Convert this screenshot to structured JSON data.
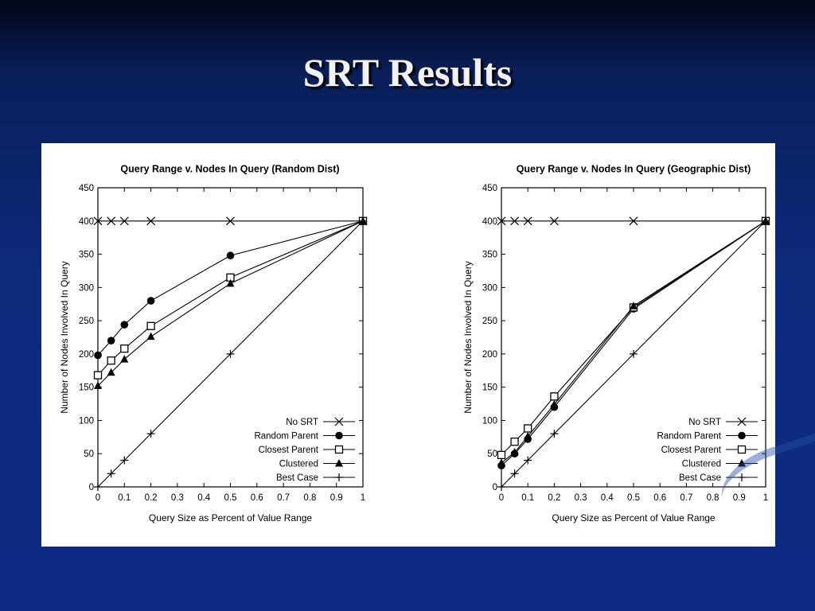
{
  "slide": {
    "title": "SRT Results"
  },
  "chart_data": [
    {
      "type": "line",
      "title": "Query Range v. Nodes In Query (Random Dist)",
      "xlabel": "Query Size as Percent of Value Range",
      "ylabel": "Number of Nodes Involved In Query",
      "xlim": [
        0,
        1
      ],
      "ylim": [
        0,
        450
      ],
      "x_ticks": [
        "0",
        "0.1",
        "0.2",
        "0.3",
        "0.4",
        "0.5",
        "0.6",
        "0.7",
        "0.8",
        "0.9",
        "1"
      ],
      "y_ticks": [
        "0",
        "50",
        "100",
        "150",
        "200",
        "250",
        "300",
        "350",
        "400",
        "450"
      ],
      "legend_position": "bottom-right",
      "series": [
        {
          "name": "No SRT",
          "marker": "x",
          "x": [
            0,
            0.05,
            0.1,
            0.2,
            0.5,
            1
          ],
          "y": [
            400,
            400,
            400,
            400,
            400,
            400
          ]
        },
        {
          "name": "Random Parent",
          "marker": "filled-circle",
          "x": [
            0,
            0.05,
            0.1,
            0.2,
            0.5,
            1
          ],
          "y": [
            198,
            220,
            244,
            280,
            348,
            400
          ]
        },
        {
          "name": "Closest Parent",
          "marker": "open-square",
          "x": [
            0,
            0.05,
            0.1,
            0.2,
            0.5,
            1
          ],
          "y": [
            168,
            190,
            208,
            242,
            315,
            400
          ]
        },
        {
          "name": "Clustered",
          "marker": "filled-triangle",
          "x": [
            0,
            0.05,
            0.1,
            0.2,
            0.5,
            1
          ],
          "y": [
            152,
            172,
            192,
            226,
            306,
            400
          ]
        },
        {
          "name": "Best Case",
          "marker": "plus",
          "x": [
            0,
            0.05,
            0.1,
            0.2,
            0.5,
            1
          ],
          "y": [
            0,
            20,
            40,
            80,
            200,
            400
          ]
        }
      ]
    },
    {
      "type": "line",
      "title": "Query Range v. Nodes In Query (Geographic Dist)",
      "xlabel": "Query Size as Percent of Value Range",
      "ylabel": "Number of Nodes Involved In Query",
      "xlim": [
        0,
        1
      ],
      "ylim": [
        0,
        450
      ],
      "x_ticks": [
        "0",
        "0.1",
        "0.2",
        "0.3",
        "0.4",
        "0.5",
        "0.6",
        "0.7",
        "0.8",
        "0.9",
        "1"
      ],
      "y_ticks": [
        "0",
        "50",
        "100",
        "150",
        "200",
        "250",
        "300",
        "350",
        "400",
        "450"
      ],
      "legend_position": "bottom-right",
      "series": [
        {
          "name": "No SRT",
          "marker": "x",
          "x": [
            0,
            0.05,
            0.1,
            0.2,
            0.5,
            1
          ],
          "y": [
            400,
            400,
            400,
            400,
            400,
            400
          ]
        },
        {
          "name": "Random Parent",
          "marker": "filled-circle",
          "x": [
            0,
            0.05,
            0.1,
            0.2,
            0.5,
            1
          ],
          "y": [
            32,
            50,
            72,
            120,
            268,
            400
          ]
        },
        {
          "name": "Closest Parent",
          "marker": "open-square",
          "x": [
            0,
            0.05,
            0.1,
            0.2,
            0.5,
            1
          ],
          "y": [
            48,
            68,
            88,
            136,
            270,
            400
          ]
        },
        {
          "name": "Clustered",
          "marker": "filled-triangle",
          "x": [
            0,
            0.05,
            0.1,
            0.2,
            0.5,
            1
          ],
          "y": [
            36,
            52,
            76,
            124,
            272,
            400
          ]
        },
        {
          "name": "Best Case",
          "marker": "plus",
          "x": [
            0,
            0.05,
            0.1,
            0.2,
            0.5,
            1
          ],
          "y": [
            0,
            20,
            40,
            80,
            200,
            400
          ]
        }
      ]
    }
  ]
}
